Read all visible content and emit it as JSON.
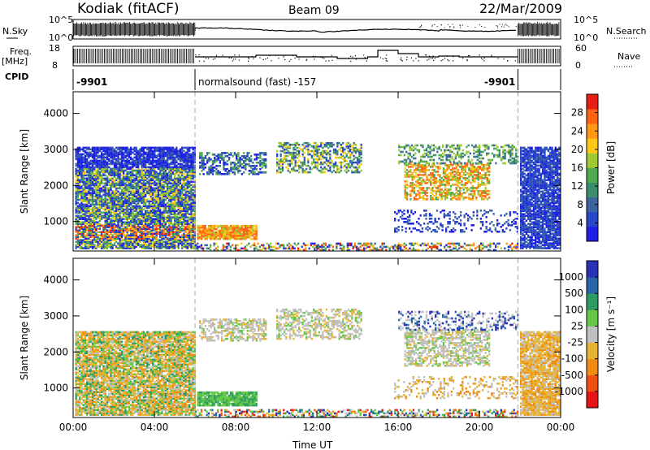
{
  "header": {
    "station": "Kodiak (fitACF)",
    "beam": "Beam 09",
    "date": "22/Mar/2009"
  },
  "top_panels": {
    "nsky_label": "N.Sky",
    "nsky_ticks": [
      "10^5",
      "10^0"
    ],
    "nsearch_label": "N.Search",
    "nsearch_ticks": [
      "10^5",
      "10^0"
    ],
    "freq_label": "Freq.",
    "freq_unit": "[MHz]",
    "freq_ticks": [
      "18",
      "8"
    ],
    "nave_label": "Nave",
    "nave_ticks": [
      "60",
      "0"
    ],
    "cpid_label": "CPID",
    "cpid_segments": [
      {
        "start_hour": 0,
        "end_hour": 6.0,
        "label": "-9901"
      },
      {
        "start_hour": 6.0,
        "end_hour": 21.9,
        "label": "normalsound (fast) -157"
      },
      {
        "start_hour": 21.9,
        "end_hour": 24,
        "label": "-9901"
      }
    ]
  },
  "chart_data": [
    {
      "type": "heatmap",
      "name": "power",
      "xlabel": "",
      "ylabel": "Slant Range [km]",
      "xlim": [
        0,
        24
      ],
      "ylim": [
        180,
        4600
      ],
      "y_ticks": [
        1000,
        2000,
        3000,
        4000
      ],
      "colorbar": {
        "label": "Power [dB]",
        "range": [
          0,
          32
        ],
        "ticks": [
          4,
          8,
          12,
          16,
          20,
          24,
          28
        ],
        "colors": [
          "#1e1ee6",
          "#2846c8",
          "#3c64a0",
          "#3c8c6e",
          "#50aa50",
          "#a0c832",
          "#ffc814",
          "#ff9614",
          "#ff6414",
          "#e61e14"
        ]
      },
      "x_ticks": [
        "00:00",
        "04:00",
        "08:00",
        "12:00",
        "16:00",
        "20:00",
        "00:00"
      ]
    },
    {
      "type": "heatmap",
      "name": "velocity",
      "xlabel": "Time UT",
      "ylabel": "Slant Range [km]",
      "xlim": [
        0,
        24
      ],
      "ylim": [
        180,
        4600
      ],
      "y_ticks": [
        1000,
        2000,
        3000,
        4000
      ],
      "colorbar": {
        "label": "Velocity [m s⁻¹]",
        "ticks": [
          "1000",
          "500",
          "100",
          "25",
          "-25",
          "-100",
          "-500",
          "-1000"
        ],
        "colors": [
          "#2832b4",
          "#2864aa",
          "#2e9a64",
          "#64c846",
          "#c0c0c0",
          "#e6b432",
          "#f08c14",
          "#f05014",
          "#e61414"
        ]
      },
      "x_ticks": [
        "00:00",
        "04:00",
        "08:00",
        "12:00",
        "16:00",
        "20:00",
        "00:00"
      ]
    }
  ]
}
